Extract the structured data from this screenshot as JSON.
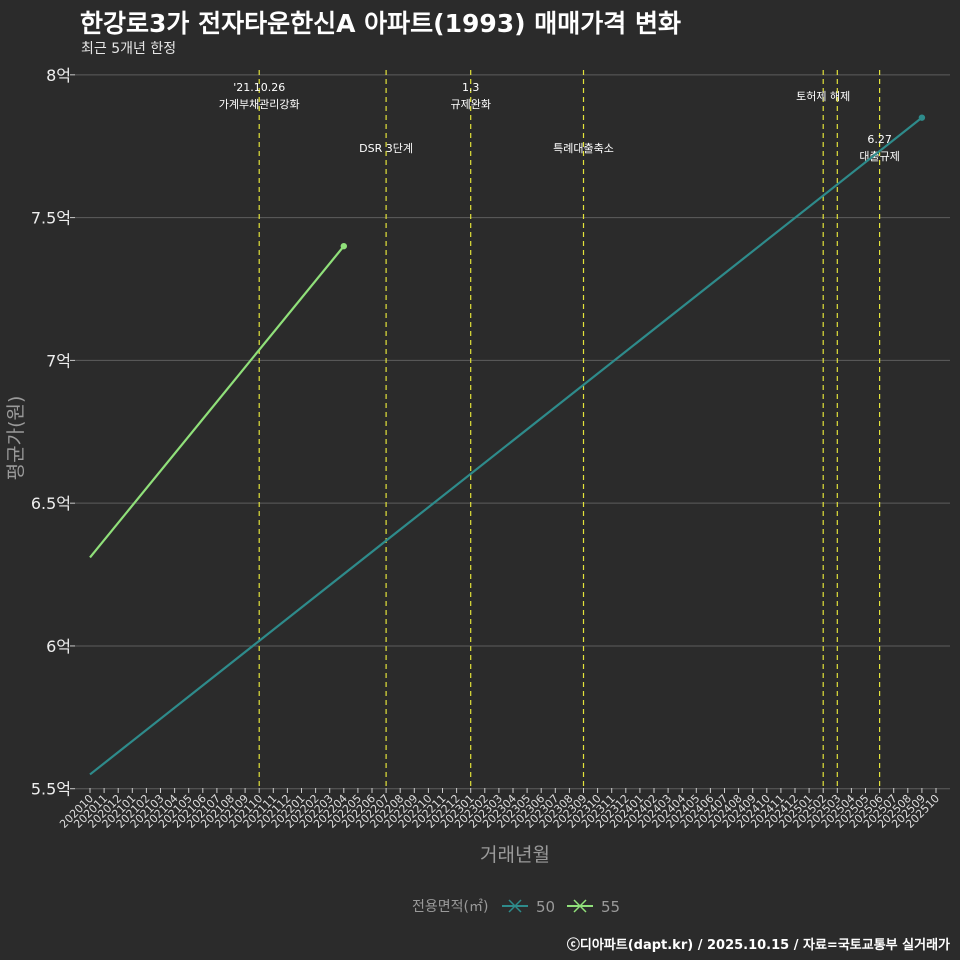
{
  "title": "한강로3가 전자타운한신A 아파트(1993) 매매가격 변화",
  "subtitle": "최근 5개년 한정",
  "caption": "ⓒ디아파트(dapt.kr) / 2025.10.15 / 자료=국토교통부 실거래가",
  "colors": {
    "background": "#2b2b2b",
    "grid": "#5e5e5e",
    "event_line": "#e3e33a",
    "series_50": "#2e8b8b",
    "series_55": "#90e07a"
  },
  "chart_data": {
    "type": "line",
    "xlabel": "거래년월",
    "ylabel": "평균가(원)",
    "categories": [
      "202010",
      "202011",
      "202012",
      "202101",
      "202102",
      "202103",
      "202104",
      "202105",
      "202106",
      "202107",
      "202108",
      "202109",
      "202110",
      "202111",
      "202112",
      "202201",
      "202202",
      "202203",
      "202204",
      "202205",
      "202206",
      "202207",
      "202208",
      "202209",
      "202210",
      "202211",
      "202212",
      "202301",
      "202302",
      "202303",
      "202304",
      "202305",
      "202306",
      "202307",
      "202308",
      "202309",
      "202310",
      "202311",
      "202312",
      "202401",
      "202402",
      "202403",
      "202404",
      "202405",
      "202406",
      "202407",
      "202408",
      "202409",
      "202410",
      "202411",
      "202412",
      "202501",
      "202502",
      "202503",
      "202504",
      "202505",
      "202506",
      "202507",
      "202508",
      "202509",
      "202510"
    ],
    "ylim": [
      5.45,
      8.15
    ],
    "yticks": [
      {
        "value": 5.5,
        "label": "5.5억"
      },
      {
        "value": 6.0,
        "label": "6억"
      },
      {
        "value": 6.5,
        "label": "6.5억"
      },
      {
        "value": 7.0,
        "label": "7억"
      },
      {
        "value": 7.5,
        "label": "7.5억"
      },
      {
        "value": 8.0,
        "label": "8억"
      }
    ],
    "series": [
      {
        "name": "50",
        "color": "#2e8b8b",
        "points": [
          {
            "x": "202010",
            "y": 5.55
          },
          {
            "x": "202509",
            "y": 7.85
          }
        ],
        "end_marker": true
      },
      {
        "name": "55",
        "color": "#90e07a",
        "points": [
          {
            "x": "202010",
            "y": 6.31
          },
          {
            "x": "202204",
            "y": 7.4
          }
        ],
        "end_marker": true
      }
    ],
    "events": [
      {
        "month": "202110",
        "lines": [
          "'21.10.26",
          "가계부채관리강화"
        ],
        "tier": "high"
      },
      {
        "month": "202207",
        "lines": [
          "DSR 3단계"
        ],
        "tier": "low"
      },
      {
        "month": "202301",
        "lines": [
          "1.3",
          "규제완화"
        ],
        "tier": "high"
      },
      {
        "month": "202309",
        "lines": [
          "특례대출축소"
        ],
        "tier": "low"
      },
      {
        "month": "202502",
        "lines": [
          "토허제 해제"
        ],
        "tier": "high"
      },
      {
        "month": "202503",
        "lines": [],
        "tier": "none"
      },
      {
        "month": "202506",
        "lines": [
          "6.27",
          "대출규제"
        ],
        "tier": "low"
      }
    ],
    "legend": {
      "title": "전용면적(㎡)",
      "position": "bottom"
    }
  }
}
